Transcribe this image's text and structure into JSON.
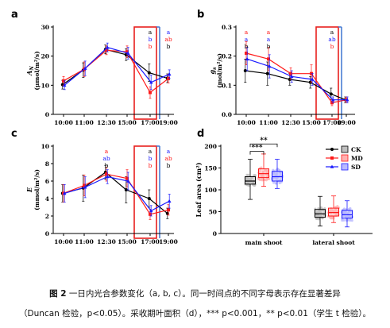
{
  "colors": {
    "CK": "#000000",
    "MD": "#ff1a1a",
    "SD": "#1a1aff",
    "box_red": "#e8201e",
    "box_blue": "#4a7fd4"
  },
  "caption": {
    "line1_bold": "图 2",
    "line1_text": "一日内光合参数变化（a, b, c）。同一时间点的不同字母表示存在显著差异",
    "line2_text": "（Duncan 检验，p<0.05）。采收期叶面积（d），*** p<0.001，** p<0.01（学生 t 检验）。"
  },
  "chart_data": [
    {
      "panel": "a",
      "type": "line",
      "ylabel_main": "A",
      "ylabel_sub": "N",
      "ylabel_unit": "(μmol/m²/s)",
      "ylim": [
        0,
        30
      ],
      "yticks": [
        "0",
        "10",
        "20",
        "30"
      ],
      "categories": [
        "10:00",
        "11:00",
        "12:30",
        "15:00",
        "17:00",
        "19:00"
      ],
      "series": [
        {
          "key": "CK",
          "values": [
            10.2,
            15.2,
            22.3,
            20.5,
            14.3,
            12.4
          ],
          "err": [
            1.5,
            2.5,
            1.5,
            2,
            3,
            1.5
          ]
        },
        {
          "key": "MD",
          "values": [
            11.5,
            15.5,
            22.0,
            21.5,
            7.5,
            12.3
          ],
          "err": [
            1.5,
            2.5,
            1.5,
            2,
            2,
            1.5
          ]
        },
        {
          "key": "SD",
          "values": [
            10.0,
            15.8,
            23.0,
            21.0,
            11.0,
            13.8
          ],
          "err": [
            1.5,
            2.5,
            1.5,
            2,
            2.5,
            1.5
          ]
        }
      ],
      "letters": [
        {
          "cat": 4,
          "items": [
            {
              "t": "a",
              "c": "CK"
            },
            {
              "t": "b",
              "c": "SD"
            },
            {
              "t": "b",
              "c": "MD"
            }
          ]
        },
        {
          "cat": 5,
          "items": [
            {
              "t": "a",
              "c": "SD"
            },
            {
              "t": "ab",
              "c": "MD"
            },
            {
              "t": "b",
              "c": "CK"
            }
          ]
        }
      ]
    },
    {
      "panel": "b",
      "type": "line",
      "ylabel_main": "g",
      "ylabel_sub": "s",
      "ylabel_unit": "(mol/m²/s)",
      "ylim": [
        0,
        0.3
      ],
      "yticks": [
        "0.0",
        "0.1",
        "0.2",
        "0.3"
      ],
      "categories": [
        "10:00",
        "11:00",
        "12:30",
        "15:00",
        "17:00",
        "19:00"
      ],
      "series": [
        {
          "key": "CK",
          "values": [
            0.15,
            0.14,
            0.12,
            0.11,
            0.07,
            0.05
          ],
          "err": [
            0.04,
            0.04,
            0.02,
            0.02,
            0.02,
            0.01
          ]
        },
        {
          "key": "MD",
          "values": [
            0.21,
            0.19,
            0.14,
            0.14,
            0.04,
            0.05
          ],
          "err": [
            0.04,
            0.04,
            0.02,
            0.03,
            0.01,
            0.01
          ]
        },
        {
          "key": "SD",
          "values": [
            0.19,
            0.165,
            0.13,
            0.12,
            0.05,
            0.05
          ],
          "err": [
            0.04,
            0.04,
            0.02,
            0.02,
            0.01,
            0.01
          ]
        }
      ],
      "letters": [
        {
          "cat": 0,
          "items": [
            {
              "t": "a",
              "c": "MD"
            },
            {
              "t": "a",
              "c": "SD"
            },
            {
              "t": "b",
              "c": "CK"
            }
          ]
        },
        {
          "cat": 1,
          "items": [
            {
              "t": "a",
              "c": "MD"
            },
            {
              "t": "a",
              "c": "SD"
            },
            {
              "t": "b",
              "c": "CK"
            }
          ]
        },
        {
          "cat": 4,
          "items": [
            {
              "t": "a",
              "c": "CK"
            },
            {
              "t": "ab",
              "c": "SD"
            },
            {
              "t": "b",
              "c": "MD"
            }
          ]
        }
      ]
    },
    {
      "panel": "c",
      "type": "line",
      "ylabel_main": "E",
      "ylabel_sub": "",
      "ylabel_unit": "(mmol/m²/s)",
      "ylim": [
        0,
        10
      ],
      "yticks": [
        "0",
        "2",
        "4",
        "6",
        "8",
        "10"
      ],
      "categories": [
        "10:00",
        "11:00",
        "12:30",
        "15:00",
        "17:00",
        "19:00"
      ],
      "series": [
        {
          "key": "CK",
          "values": [
            4.6,
            5.2,
            7.0,
            5.0,
            4.0,
            2.3
          ],
          "err": [
            1,
            1.5,
            0.8,
            1.5,
            1,
            0.6
          ]
        },
        {
          "key": "MD",
          "values": [
            4.6,
            5.5,
            6.8,
            6.3,
            2.2,
            2.7
          ],
          "err": [
            1,
            1.2,
            0.8,
            1,
            0.6,
            0.6
          ]
        },
        {
          "key": "SD",
          "values": [
            4.6,
            5.3,
            6.5,
            6.0,
            2.6,
            3.7
          ],
          "err": [
            1,
            1.2,
            0.8,
            1,
            0.6,
            0.8
          ]
        }
      ],
      "letters": [
        {
          "cat": 2,
          "items": [
            {
              "t": "a",
              "c": "MD"
            },
            {
              "t": "ab",
              "c": "SD"
            },
            {
              "t": "b",
              "c": "CK"
            }
          ]
        },
        {
          "cat": 4,
          "items": [
            {
              "t": "a",
              "c": "CK"
            },
            {
              "t": "b",
              "c": "SD"
            },
            {
              "t": "b",
              "c": "MD"
            }
          ]
        },
        {
          "cat": 5,
          "items": [
            {
              "t": "a",
              "c": "SD"
            },
            {
              "t": "ab",
              "c": "MD"
            },
            {
              "t": "b",
              "c": "CK"
            }
          ]
        }
      ]
    },
    {
      "panel": "d",
      "type": "box",
      "ylabel_main": "Leaf area (cm²)",
      "ylim": [
        0,
        200
      ],
      "yticks": [
        "0",
        "50",
        "100",
        "150",
        "200"
      ],
      "groups": [
        "main shoot",
        "lateral shoot"
      ],
      "legend": [
        "CK",
        "MD",
        "SD"
      ],
      "boxes": [
        {
          "group": 0,
          "key": "CK",
          "min": 78,
          "q1": 113,
          "median": 120,
          "q3": 130,
          "max": 170
        },
        {
          "group": 0,
          "key": "MD",
          "min": 108,
          "q1": 128,
          "median": 137,
          "q3": 148,
          "max": 182
        },
        {
          "group": 0,
          "key": "SD",
          "min": 103,
          "q1": 120,
          "median": 130,
          "q3": 142,
          "max": 170
        },
        {
          "group": 1,
          "key": "CK",
          "min": 17,
          "q1": 37,
          "median": 45,
          "q3": 55,
          "max": 85
        },
        {
          "group": 1,
          "key": "MD",
          "min": 25,
          "q1": 40,
          "median": 48,
          "q3": 58,
          "max": 86
        },
        {
          "group": 1,
          "key": "SD",
          "min": 15,
          "q1": 35,
          "median": 43,
          "q3": 53,
          "max": 75
        }
      ],
      "significance": [
        {
          "label": "***",
          "from": "CK",
          "to": "MD"
        },
        {
          "label": "**",
          "from": "CK",
          "to": "SD"
        }
      ]
    }
  ]
}
